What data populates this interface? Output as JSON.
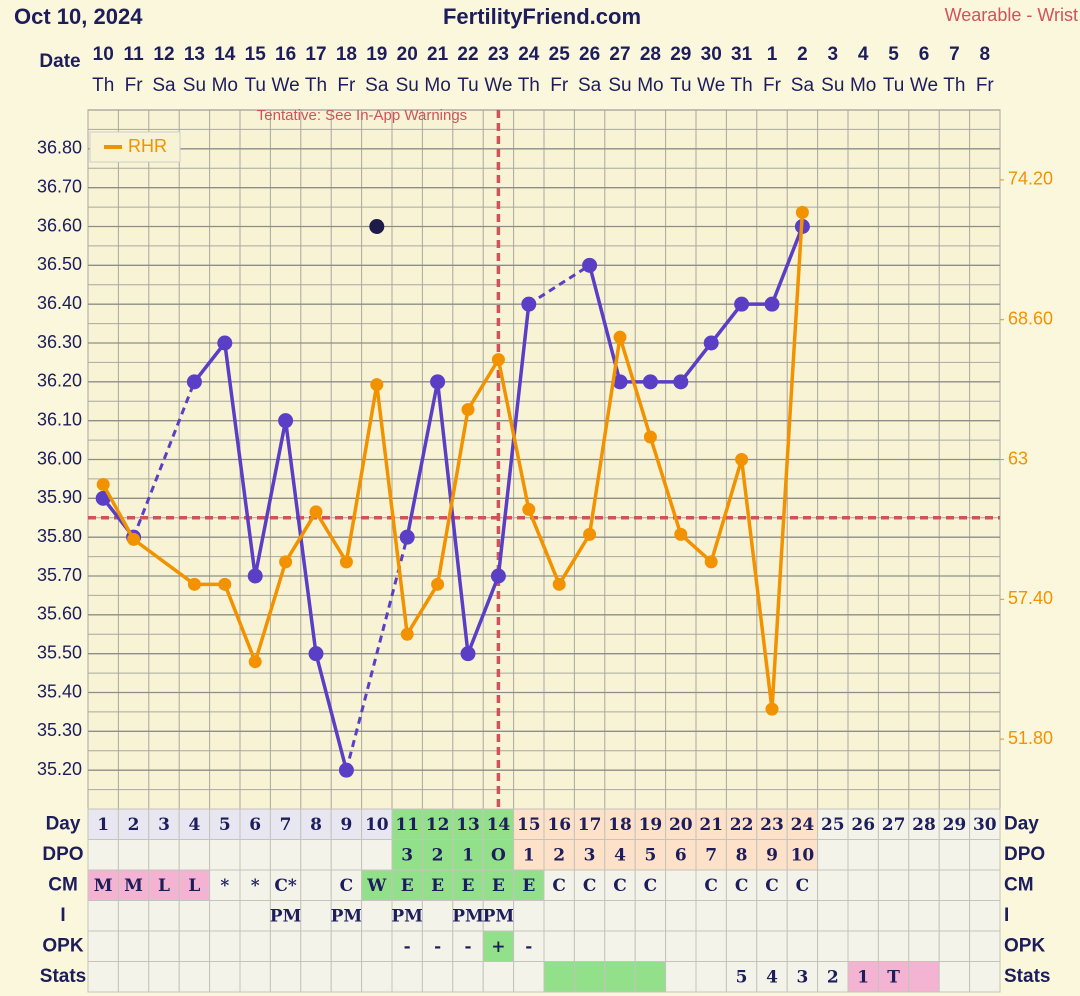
{
  "chart_data": {
    "type": "line",
    "title": "FertilityFriend.com",
    "date": "Oct 10, 2024",
    "source": "Wearable - Wrist",
    "annotation": "Tentative: See In-App Warnings",
    "date_label": "Date",
    "categories": [
      1,
      2,
      3,
      4,
      5,
      6,
      7,
      8,
      9,
      10,
      11,
      12,
      13,
      14,
      15,
      16,
      17,
      18,
      19,
      20,
      21,
      22,
      23,
      24,
      25,
      26,
      27,
      28,
      29,
      30
    ],
    "dates": [
      "10",
      "11",
      "12",
      "13",
      "14",
      "15",
      "16",
      "17",
      "18",
      "19",
      "20",
      "21",
      "22",
      "23",
      "24",
      "25",
      "26",
      "27",
      "28",
      "29",
      "30",
      "31",
      "1",
      "2",
      "3",
      "4",
      "5",
      "6",
      "7",
      "8"
    ],
    "weekdays": [
      "Th",
      "Fr",
      "Sa",
      "Su",
      "Mo",
      "Tu",
      "We",
      "Th",
      "Fr",
      "Sa",
      "Su",
      "Mo",
      "Tu",
      "We",
      "Th",
      "Fr",
      "Sa",
      "Su",
      "Mo",
      "Tu",
      "We",
      "Th",
      "Fr",
      "Sa",
      "Su",
      "Mo",
      "Tu",
      "We",
      "Th",
      "Fr"
    ],
    "ylim": [
      35.1,
      36.9
    ],
    "yticks": [
      {
        "value": 35.2,
        "label": "35.20"
      },
      {
        "value": 35.3,
        "label": "35.30"
      },
      {
        "value": 35.4,
        "label": "35.40"
      },
      {
        "value": 35.5,
        "label": "35.50"
      },
      {
        "value": 35.6,
        "label": "35.60"
      },
      {
        "value": 35.7,
        "label": "35.70"
      },
      {
        "value": 35.8,
        "label": "35.80"
      },
      {
        "value": 35.9,
        "label": "35.90"
      },
      {
        "value": 36.0,
        "label": "36.00"
      },
      {
        "value": 36.1,
        "label": "36.10"
      },
      {
        "value": 36.2,
        "label": "36.20"
      },
      {
        "value": 36.3,
        "label": "36.30"
      },
      {
        "value": 36.4,
        "label": "36.40"
      },
      {
        "value": 36.5,
        "label": "36.50"
      },
      {
        "value": 36.6,
        "label": "36.60"
      },
      {
        "value": 36.7,
        "label": "36.70"
      },
      {
        "value": 36.8,
        "label": "36.80"
      }
    ],
    "y2lim": [
      49,
      77
    ],
    "y2ticks": [
      {
        "value": 51.8,
        "label": "51.80"
      },
      {
        "value": 57.4,
        "label": "57.40"
      },
      63,
      {
        "value": 68.6,
        "label": "68.60"
      },
      {
        "value": 74.2,
        "label": "74.20"
      }
    ],
    "grid": true,
    "legend": "upper left",
    "coverline": 35.85,
    "ovulation_day": 14,
    "series": [
      {
        "color": "#5a3fc6",
        "connect_gaps": "dashed",
        "values": [
          35.9,
          35.8,
          null,
          36.2,
          36.3,
          35.7,
          36.1,
          35.5,
          35.2,
          null,
          35.8,
          36.2,
          35.5,
          35.7,
          36.4,
          null,
          36.5,
          36.2,
          36.2,
          36.2,
          36.3,
          36.4,
          36.4,
          36.6,
          null,
          null,
          null,
          null,
          null,
          null
        ]
      },
      {
        "color": "#1e1b4b",
        "values": [
          null,
          null,
          null,
          null,
          null,
          null,
          null,
          null,
          null,
          36.6,
          null,
          null,
          null,
          null,
          null,
          null,
          null,
          null,
          null,
          null,
          null,
          null,
          null,
          null,
          null,
          null,
          null,
          null,
          null,
          null
        ]
      },
      {
        "name": "RHR",
        "color": "#f39200",
        "axis": "y2",
        "x": [
          1,
          2,
          4,
          5,
          6,
          7,
          8,
          9,
          10,
          11,
          12,
          13,
          14,
          15,
          16,
          17,
          18,
          19,
          20,
          21,
          22,
          23,
          24
        ],
        "values": [
          62.0,
          59.8,
          58.0,
          58.0,
          54.9,
          58.9,
          60.9,
          58.9,
          66.0,
          56.0,
          58.0,
          65.0,
          67.0,
          61.0,
          58.0,
          60.0,
          67.9,
          63.9,
          60.0,
          58.9,
          63.0,
          53.0,
          72.9
        ]
      }
    ],
    "table": {
      "rows": [
        {
          "label": "Day",
          "colors": [
            "#e8e6f1",
            "#e8e6f1",
            "#e8e6f1",
            "#e8e6f1",
            "#e8e6f1",
            "#e8e6f1",
            "#e8e6f1",
            "#e8e6f1",
            "#e8e6f1",
            "#e8e6f1",
            "#93e08b",
            "#93e08b",
            "#93e08b",
            "#93e08b",
            "#fde1c9",
            "#fde1c9",
            "#fde1c9",
            "#fde1c9",
            "#fde1c9",
            "#fde1c9",
            "#fde1c9",
            "#fde1c9",
            "#fde1c9",
            "#fde1c9",
            null,
            null,
            null,
            null,
            null,
            null
          ]
        },
        {
          "label": "DPO",
          "values": [
            null,
            null,
            null,
            null,
            null,
            null,
            null,
            null,
            null,
            null,
            "3",
            "2",
            "1",
            "O",
            "1",
            "2",
            "3",
            "4",
            "5",
            "6",
            "7",
            "8",
            "9",
            "10",
            null,
            null,
            null,
            null,
            null,
            null
          ],
          "colors": [
            null,
            null,
            null,
            null,
            null,
            null,
            null,
            null,
            null,
            null,
            "#93e08b",
            "#93e08b",
            "#93e08b",
            "#93e08b",
            "#fde1c9",
            "#fde1c9",
            "#fde1c9",
            "#fde1c9",
            "#fde1c9",
            "#fde1c9",
            "#fde1c9",
            "#fde1c9",
            "#fde1c9",
            "#fde1c9",
            null,
            null,
            null,
            null,
            null,
            null
          ]
        },
        {
          "label": "CM",
          "values": [
            "M",
            "M",
            "L",
            "L",
            "*",
            "*",
            "C*",
            null,
            "C",
            "W",
            "E",
            "E",
            "E",
            "E",
            "E",
            "C",
            "C",
            "C",
            "C",
            null,
            "C",
            "C",
            "C",
            "C",
            null,
            null,
            null,
            null,
            null,
            null
          ],
          "colors": [
            "#f4b3d2",
            "#f4b3d2",
            "#f4b3d2",
            "#f4b3d2",
            null,
            null,
            null,
            null,
            null,
            "#93e08b",
            "#93e08b",
            "#93e08b",
            "#93e08b",
            "#93e08b",
            "#93e08b",
            null,
            null,
            null,
            null,
            null,
            null,
            null,
            null,
            null,
            null,
            null,
            null,
            null,
            null,
            null
          ]
        },
        {
          "label": "I",
          "values": [
            null,
            null,
            null,
            null,
            null,
            null,
            "PM",
            null,
            "PM",
            null,
            "PM",
            null,
            "PM",
            "PM",
            null,
            null,
            null,
            null,
            null,
            null,
            null,
            null,
            null,
            null,
            null,
            null,
            null,
            null,
            null,
            null
          ]
        },
        {
          "label": "OPK",
          "values": [
            null,
            null,
            null,
            null,
            null,
            null,
            null,
            null,
            null,
            null,
            "-",
            "-",
            "-",
            "+",
            "-",
            null,
            null,
            null,
            null,
            null,
            null,
            null,
            null,
            null,
            null,
            null,
            null,
            null,
            null,
            null
          ],
          "colors": [
            null,
            null,
            null,
            null,
            null,
            null,
            null,
            null,
            null,
            null,
            null,
            null,
            null,
            "#93e08b",
            null,
            null,
            null,
            null,
            null,
            null,
            null,
            null,
            null,
            null,
            null,
            null,
            null,
            null,
            null,
            null
          ]
        },
        {
          "label": "Stats",
          "values": [
            null,
            null,
            null,
            null,
            null,
            null,
            null,
            null,
            null,
            null,
            null,
            null,
            null,
            null,
            null,
            null,
            null,
            null,
            null,
            null,
            null,
            "5",
            "4",
            "3",
            "2",
            "1",
            "T",
            null,
            null,
            null
          ],
          "colors": [
            null,
            null,
            null,
            null,
            null,
            null,
            null,
            null,
            null,
            null,
            null,
            null,
            null,
            null,
            null,
            "#93e08b",
            "#93e08b",
            "#93e08b",
            "#93e08b",
            null,
            null,
            null,
            null,
            null,
            null,
            "#f4b3d2",
            "#f4b3d2",
            "#f4b3d2",
            null,
            null
          ]
        }
      ]
    }
  }
}
